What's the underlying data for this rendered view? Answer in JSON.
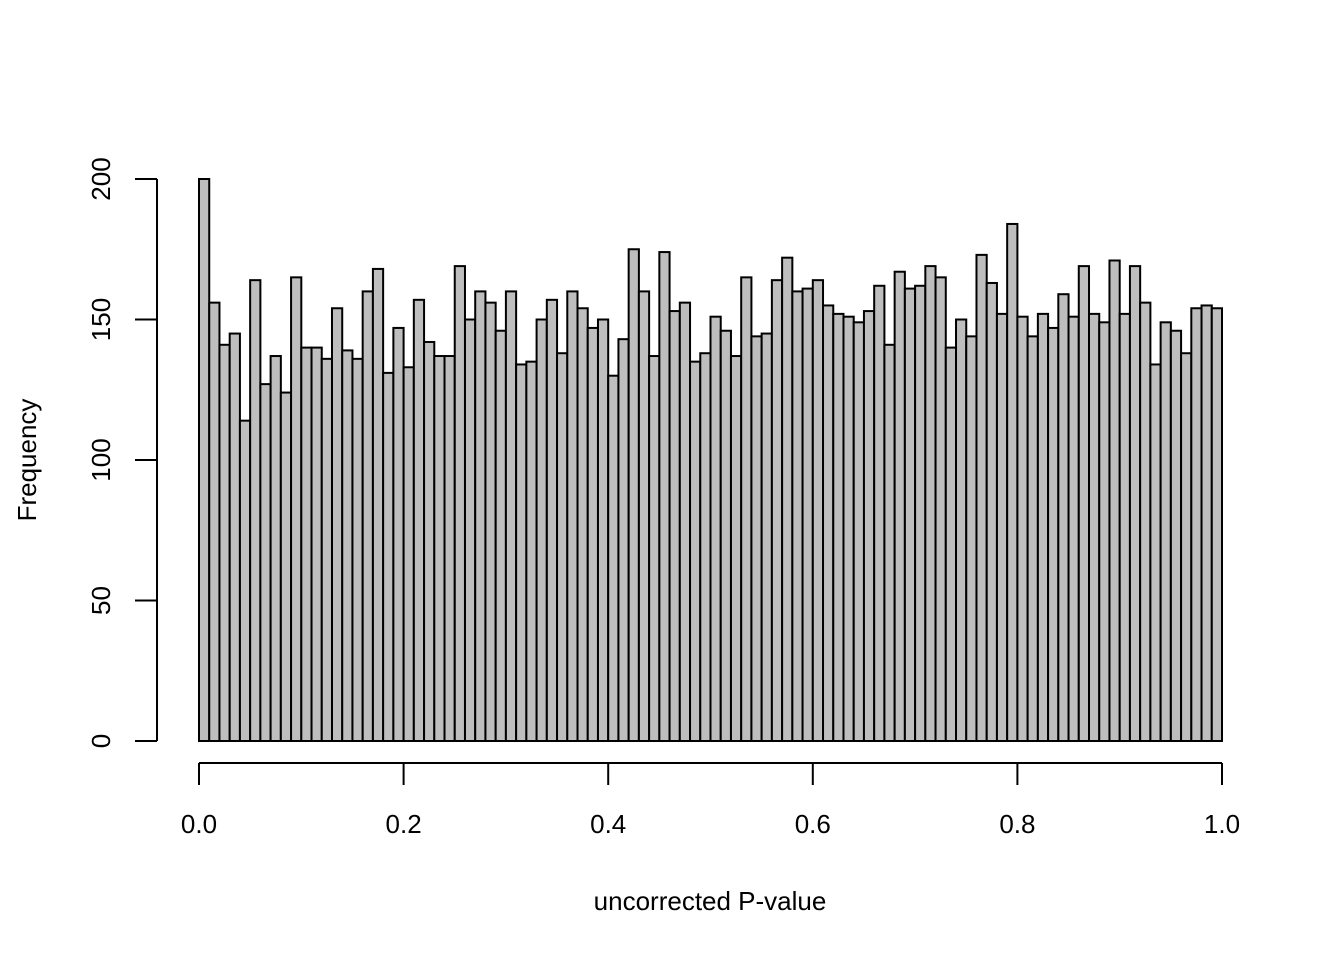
{
  "chart_data": {
    "type": "bar",
    "title": "",
    "xlabel": "uncorrected P-value",
    "ylabel": "Frequency",
    "xlim": [
      0,
      1
    ],
    "ylim": [
      0,
      200
    ],
    "bin_width": 0.01,
    "x_ticks": [
      "0.0",
      "0.2",
      "0.4",
      "0.6",
      "0.8",
      "1.0"
    ],
    "y_ticks": [
      "0",
      "50",
      "100",
      "150",
      "200"
    ],
    "bar_fill": "#bebebe",
    "bar_stroke": "#000000",
    "grid": false,
    "values": [
      200,
      156,
      141,
      145,
      114,
      164,
      127,
      137,
      124,
      165,
      140,
      140,
      136,
      154,
      139,
      136,
      160,
      168,
      131,
      147,
      133,
      157,
      142,
      137,
      137,
      169,
      150,
      160,
      156,
      146,
      160,
      134,
      135,
      150,
      157,
      138,
      160,
      154,
      147,
      150,
      130,
      143,
      175,
      160,
      137,
      174,
      153,
      156,
      135,
      138,
      151,
      146,
      137,
      165,
      144,
      145,
      164,
      172,
      160,
      161,
      164,
      155,
      152,
      151,
      149,
      153,
      162,
      141,
      167,
      161,
      162,
      169,
      165,
      140,
      150,
      144,
      173,
      163,
      152,
      184,
      151,
      144,
      152,
      147,
      159,
      151,
      169,
      152,
      149,
      171,
      152,
      169,
      156,
      134,
      149,
      146,
      138,
      154,
      155,
      154
    ]
  }
}
